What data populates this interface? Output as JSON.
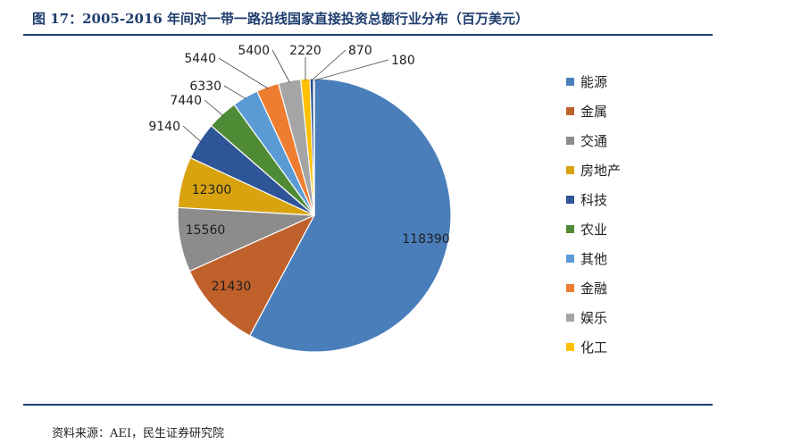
{
  "figure": {
    "title": "图 17：2005-2016 年间对一带一路沿线国家直接投资总额行业分布（百万美元）",
    "source": "资料来源：AEI，民生证券研究院"
  },
  "chart_data": {
    "type": "pie",
    "title": "",
    "unit": "百万美元",
    "legend_position": "right",
    "slices": [
      {
        "label": "能源",
        "value": 118390,
        "color": "#4a7ebb"
      },
      {
        "label": "金属",
        "value": 21430,
        "color": "#c0602b"
      },
      {
        "label": "交通",
        "value": 15560,
        "color": "#8c8c8c"
      },
      {
        "label": "房地产",
        "value": 12300,
        "color": "#d9a30f"
      },
      {
        "label": "科技",
        "value": 9140,
        "color": "#2e5597"
      },
      {
        "label": "农业",
        "value": 7440,
        "color": "#4f8a35"
      },
      {
        "label": "其他",
        "value": 6330,
        "color": "#5b9bd5"
      },
      {
        "label": "金融",
        "value": 5440,
        "color": "#ed7d31"
      },
      {
        "label": "娱乐",
        "value": 5400,
        "color": "#a5a5a5"
      },
      {
        "label": "化工",
        "value": 2220,
        "color": "#ffc000"
      },
      {
        "label": "",
        "value": 870,
        "color": "#2f4e8a"
      },
      {
        "label": "",
        "value": 180,
        "color": "#548235"
      }
    ]
  }
}
